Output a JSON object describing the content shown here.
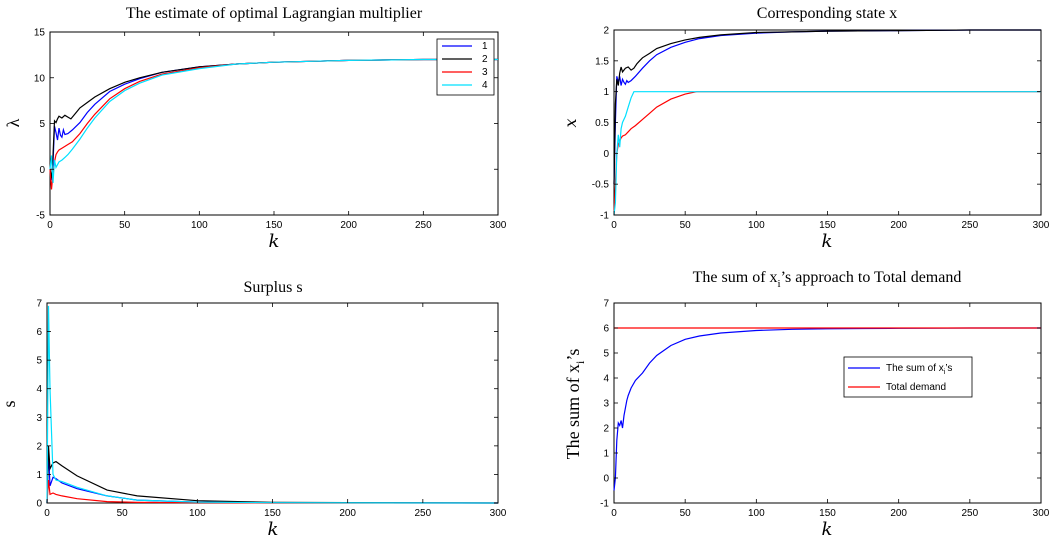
{
  "figure": {
    "panels": [
      {
        "id": "lambda",
        "title": "The estimate of optimal Lagrangian multiplier",
        "xlabel": "k",
        "ylabel": "λ",
        "xlim": [
          0,
          300
        ],
        "ylim": [
          -5,
          15
        ],
        "xticks": [
          0,
          50,
          100,
          150,
          200,
          250,
          300
        ],
        "yticks": [
          -5,
          0,
          5,
          10,
          15
        ],
        "legend": [
          "1",
          "2",
          "3",
          "4"
        ]
      },
      {
        "id": "state",
        "title": "Corresponding state x",
        "xlabel": "k",
        "ylabel": "x",
        "xlim": [
          0,
          300
        ],
        "ylim": [
          -1,
          2
        ],
        "xticks": [
          0,
          50,
          100,
          150,
          200,
          250,
          300
        ],
        "yticks": [
          -1,
          -0.5,
          0,
          0.5,
          1,
          1.5,
          2
        ]
      },
      {
        "id": "surplus",
        "title": "Surplus s",
        "xlabel": "k",
        "ylabel": "s",
        "xlim": [
          0,
          300
        ],
        "ylim": [
          0,
          7
        ],
        "xticks": [
          0,
          50,
          100,
          150,
          200,
          250,
          300
        ],
        "yticks": [
          0,
          1,
          2,
          3,
          4,
          5,
          6,
          7
        ]
      },
      {
        "id": "sum",
        "title_main": "The sum of x",
        "title_sub": "i",
        "title_tail": "’s approach to Total demand",
        "xlabel": "k",
        "ylabel_main": "The sum of x",
        "ylabel_sub": "i",
        "ylabel_tail": "’s",
        "xlim": [
          0,
          300
        ],
        "ylim": [
          -1,
          7
        ],
        "xticks": [
          0,
          50,
          100,
          150,
          200,
          250,
          300
        ],
        "yticks": [
          -1,
          0,
          1,
          2,
          3,
          4,
          5,
          6,
          7
        ],
        "legend": [
          {
            "main": "The sum of x",
            "sub": "i",
            "tail": "’s"
          },
          {
            "main": "Total demand",
            "sub": "",
            "tail": ""
          }
        ]
      }
    ]
  },
  "chart_data": [
    {
      "type": "line",
      "title": "The estimate of optimal Lagrangian multiplier",
      "xlabel": "k",
      "ylabel": "λ",
      "xlim": [
        0,
        300
      ],
      "ylim": [
        -5,
        15
      ],
      "legend_position": "top-right",
      "series": [
        {
          "name": "1",
          "color": "#0000ff",
          "x": [
            0,
            1,
            2,
            3,
            4,
            5,
            6,
            7,
            8,
            9,
            10,
            12,
            15,
            20,
            25,
            30,
            40,
            50,
            60,
            75,
            100,
            125,
            150,
            175,
            200,
            250,
            300
          ],
          "y": [
            0,
            -1.2,
            0.6,
            4.7,
            4.0,
            3.2,
            4.5,
            3.7,
            3.5,
            4.3,
            3.8,
            3.9,
            4.3,
            5.1,
            6.2,
            7.1,
            8.5,
            9.3,
            9.9,
            10.6,
            11.2,
            11.5,
            11.7,
            11.8,
            11.9,
            12.0,
            12.0
          ]
        },
        {
          "name": "2",
          "color": "#000000",
          "x": [
            0,
            1,
            2,
            3,
            4,
            5,
            6,
            8,
            10,
            12,
            14,
            16,
            18,
            20,
            25,
            30,
            40,
            50,
            60,
            75,
            100,
            125,
            150,
            175,
            200,
            250,
            300
          ],
          "y": [
            0,
            -1.0,
            1.5,
            5.3,
            5.1,
            5.5,
            5.8,
            5.6,
            5.9,
            5.7,
            5.5,
            5.9,
            6.3,
            6.7,
            7.3,
            7.9,
            8.8,
            9.5,
            10.0,
            10.6,
            11.2,
            11.5,
            11.7,
            11.8,
            11.9,
            12.0,
            12.0
          ]
        },
        {
          "name": "3",
          "color": "#ff0000",
          "x": [
            0,
            1,
            2,
            3,
            4,
            5,
            6,
            8,
            10,
            12,
            15,
            20,
            25,
            30,
            40,
            50,
            60,
            75,
            100,
            125,
            150,
            175,
            200,
            250,
            300
          ],
          "y": [
            0,
            -2.2,
            -0.5,
            0.8,
            1.6,
            1.9,
            2.1,
            2.3,
            2.5,
            2.7,
            3.0,
            3.9,
            5.0,
            6.0,
            7.7,
            8.8,
            9.6,
            10.4,
            11.1,
            11.5,
            11.7,
            11.8,
            11.9,
            12.0,
            12.0
          ]
        },
        {
          "name": "4",
          "color": "#00e0ff",
          "x": [
            0,
            1,
            2,
            3,
            4,
            5,
            6,
            8,
            10,
            12,
            15,
            20,
            25,
            30,
            40,
            50,
            60,
            75,
            100,
            125,
            150,
            175,
            200,
            250,
            300
          ],
          "y": [
            0,
            1.5,
            -1.5,
            1.0,
            0.2,
            0.5,
            0.8,
            1.0,
            1.3,
            1.6,
            2.2,
            3.3,
            4.5,
            5.6,
            7.4,
            8.6,
            9.4,
            10.3,
            11.0,
            11.5,
            11.7,
            11.8,
            11.9,
            12.0,
            12.0
          ]
        }
      ]
    },
    {
      "type": "line",
      "title": "Corresponding state x",
      "xlabel": "k",
      "ylabel": "x",
      "xlim": [
        0,
        300
      ],
      "ylim": [
        -1,
        2
      ],
      "series": [
        {
          "name": "1",
          "color": "#0000ff",
          "x": [
            0,
            1,
            2,
            3,
            4,
            5,
            6,
            7,
            8,
            9,
            10,
            12,
            15,
            20,
            25,
            30,
            40,
            50,
            60,
            75,
            100,
            125,
            150,
            200,
            250,
            300
          ],
          "y": [
            -0.5,
            0.5,
            1.25,
            1.15,
            1.25,
            1.1,
            1.2,
            1.15,
            1.12,
            1.18,
            1.15,
            1.18,
            1.25,
            1.38,
            1.5,
            1.6,
            1.72,
            1.8,
            1.86,
            1.91,
            1.95,
            1.97,
            1.98,
            1.99,
            2.0,
            2.0
          ]
        },
        {
          "name": "2",
          "color": "#000000",
          "x": [
            0,
            1,
            2,
            3,
            4,
            5,
            6,
            8,
            10,
            12,
            14,
            16,
            18,
            20,
            25,
            30,
            40,
            50,
            60,
            75,
            100,
            125,
            150,
            200,
            250,
            300
          ],
          "y": [
            -0.5,
            0.8,
            1.2,
            1.1,
            1.3,
            1.4,
            1.32,
            1.38,
            1.4,
            1.35,
            1.38,
            1.45,
            1.5,
            1.55,
            1.62,
            1.7,
            1.78,
            1.84,
            1.88,
            1.92,
            1.96,
            1.97,
            1.98,
            1.99,
            2.0,
            2.0
          ]
        },
        {
          "name": "3",
          "color": "#ff0000",
          "x": [
            0,
            1,
            2,
            3,
            4,
            5,
            6,
            8,
            10,
            12,
            15,
            20,
            25,
            30,
            40,
            50,
            58,
            60,
            100,
            150,
            200,
            250,
            300
          ],
          "y": [
            -1.0,
            -0.5,
            0.0,
            0.15,
            0.2,
            0.25,
            0.28,
            0.3,
            0.35,
            0.4,
            0.45,
            0.55,
            0.65,
            0.75,
            0.88,
            0.96,
            1.0,
            1.0,
            1.0,
            1.0,
            1.0,
            1.0,
            1.0
          ]
        },
        {
          "name": "4",
          "color": "#00e0ff",
          "x": [
            0,
            1,
            2,
            3,
            4,
            5,
            6,
            8,
            10,
            12,
            14,
            20,
            50,
            100,
            150,
            200,
            250,
            300
          ],
          "y": [
            -1.0,
            -0.8,
            0.0,
            0.3,
            0.1,
            0.4,
            0.5,
            0.6,
            0.75,
            0.9,
            1.0,
            1.0,
            1.0,
            1.0,
            1.0,
            1.0,
            1.0,
            1.0
          ]
        }
      ]
    },
    {
      "type": "line",
      "title": "Surplus s",
      "xlabel": "k",
      "ylabel": "s",
      "xlim": [
        0,
        300
      ],
      "ylim": [
        0,
        7
      ],
      "series": [
        {
          "name": "1",
          "color": "#0000ff",
          "x": [
            0,
            1,
            2,
            4,
            6,
            10,
            20,
            40,
            60,
            100,
            150,
            300
          ],
          "y": [
            0,
            1.8,
            0.6,
            0.9,
            0.85,
            0.7,
            0.5,
            0.25,
            0.1,
            0.03,
            0.01,
            0
          ]
        },
        {
          "name": "2",
          "color": "#000000",
          "x": [
            0,
            1,
            2,
            4,
            6,
            10,
            20,
            40,
            60,
            100,
            150,
            300
          ],
          "y": [
            0,
            2.0,
            1.2,
            1.4,
            1.45,
            1.3,
            0.95,
            0.45,
            0.25,
            0.08,
            0.02,
            0
          ]
        },
        {
          "name": "3",
          "color": "#ff0000",
          "x": [
            0,
            1,
            2,
            4,
            6,
            10,
            20,
            40,
            60,
            100,
            150,
            300
          ],
          "y": [
            0,
            0.8,
            0.3,
            0.35,
            0.3,
            0.25,
            0.15,
            0.05,
            0.02,
            0.01,
            0,
            0
          ]
        },
        {
          "name": "4",
          "color": "#00e0ff",
          "x": [
            0,
            1,
            2,
            4,
            6,
            10,
            20,
            40,
            60,
            100,
            150,
            300
          ],
          "y": [
            0,
            6.9,
            4.0,
            1.0,
            0.8,
            0.75,
            0.55,
            0.25,
            0.1,
            0.03,
            0.01,
            0
          ]
        }
      ]
    },
    {
      "type": "line",
      "title": "The sum of xi’s approach to Total demand",
      "xlabel": "k",
      "ylabel": "The sum of xi’s",
      "xlim": [
        0,
        300
      ],
      "ylim": [
        -1,
        7
      ],
      "legend_position": "center-right",
      "series": [
        {
          "name": "The sum of xi’s",
          "color": "#0000ff",
          "x": [
            0,
            1,
            2,
            3,
            4,
            5,
            6,
            7,
            8,
            9,
            10,
            12,
            15,
            20,
            25,
            30,
            40,
            50,
            60,
            75,
            100,
            125,
            150,
            175,
            200,
            250,
            300
          ],
          "y": [
            -0.5,
            0.0,
            1.5,
            2.2,
            2.1,
            2.3,
            2.0,
            2.5,
            2.8,
            3.1,
            3.3,
            3.6,
            3.9,
            4.2,
            4.6,
            4.9,
            5.3,
            5.55,
            5.68,
            5.8,
            5.9,
            5.95,
            5.97,
            5.98,
            5.99,
            6.0,
            6.0
          ]
        },
        {
          "name": "Total demand",
          "color": "#ff0000",
          "x": [
            0,
            300
          ],
          "y": [
            6,
            6
          ]
        }
      ]
    }
  ]
}
